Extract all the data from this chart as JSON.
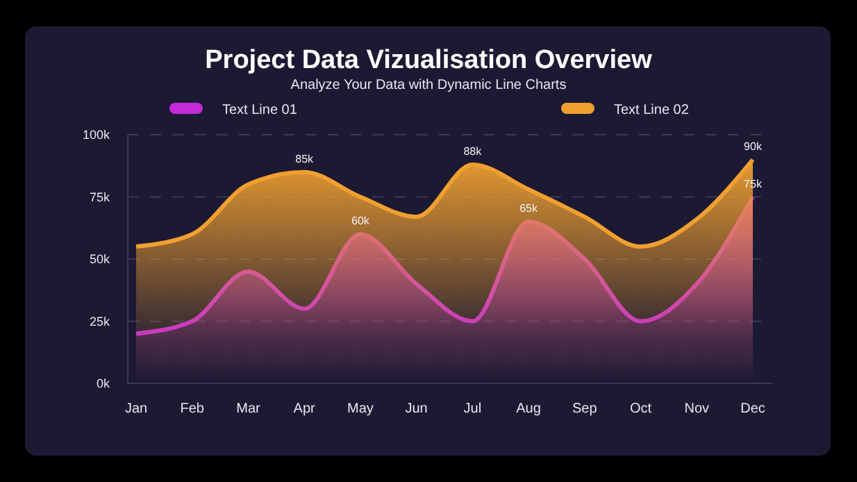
{
  "chart_data": {
    "type": "area",
    "title": "Project Data Vizualisation Overview",
    "subtitle": "Analyze Your Data with Dynamic Line Charts",
    "categories": [
      "Jan",
      "Feb",
      "Mar",
      "Apr",
      "May",
      "Jun",
      "Jul",
      "Aug",
      "Sep",
      "Oct",
      "Nov",
      "Dec"
    ],
    "series": [
      {
        "name": "Text Line 01",
        "color": "#c42ad8",
        "values": [
          20,
          25,
          45,
          30,
          60,
          40,
          25,
          65,
          50,
          25,
          40,
          75
        ],
        "value_labels": [
          null,
          null,
          null,
          null,
          "60k",
          null,
          null,
          "65k",
          null,
          null,
          null,
          "75k"
        ]
      },
      {
        "name": "Text Line 02",
        "color": "#f0a030",
        "values": [
          55,
          60,
          80,
          85,
          75,
          67,
          88,
          78,
          67,
          55,
          66,
          90
        ],
        "value_labels": [
          null,
          null,
          null,
          "85k",
          null,
          null,
          "88k",
          null,
          null,
          null,
          null,
          "90k"
        ]
      }
    ],
    "ylim": [
      0,
      100
    ],
    "yticks": [
      {
        "value": 0,
        "label": "0k"
      },
      {
        "value": 25,
        "label": "25k"
      },
      {
        "value": 50,
        "label": "50k"
      },
      {
        "value": 75,
        "label": "75k"
      },
      {
        "value": 100,
        "label": "100k"
      }
    ],
    "grid": "y",
    "legend": "top"
  }
}
